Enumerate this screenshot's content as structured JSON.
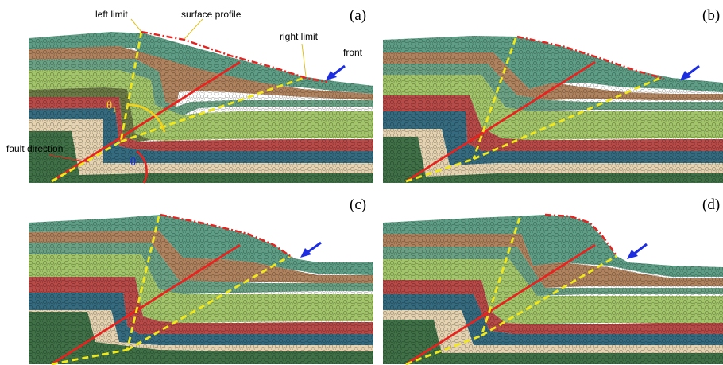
{
  "figure": {
    "panels": [
      {
        "id": "a",
        "label": "(a)"
      },
      {
        "id": "b",
        "label": "(b)"
      },
      {
        "id": "c",
        "label": "(c)"
      },
      {
        "id": "d",
        "label": "(d)"
      }
    ],
    "annotations": {
      "left_limit": "left limit",
      "surface_profile": "surface profile",
      "right_limit": "right limit",
      "front": "front",
      "fault_direction": "fault direction",
      "theta_1": "θ",
      "theta_1_sub": "1",
      "theta": "θ"
    },
    "colors": {
      "layers_top_to_bottom": [
        "#5e9e86",
        "#b0835f",
        "#6aa184",
        "#a3c56a",
        "#6b7a45",
        "#b84a48",
        "#356b7f",
        "#e5d3b1",
        "#3f7046"
      ],
      "fault_line": "#e8221e",
      "limit_lines": "#f0e81a",
      "surface_profile_line": "#e8221e",
      "front_arrow": "#1d2ee0",
      "theta_1_arc": "#f2d21b",
      "theta_arc": "#e8221e",
      "theta_1_label": "#f2d21b",
      "theta_label": "#1d2ee0"
    }
  }
}
